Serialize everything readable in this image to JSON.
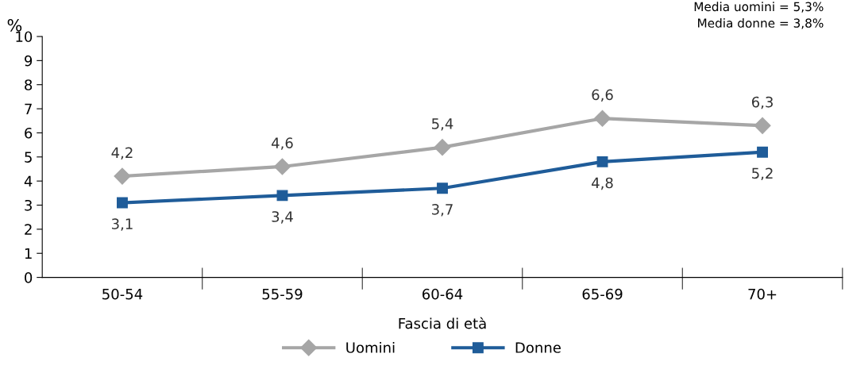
{
  "chart_data": {
    "type": "line",
    "xlabel": "Fascia di età",
    "ylabel": "%",
    "categories": [
      "50-54",
      "55-59",
      "60-64",
      "65-69",
      "70+"
    ],
    "series": [
      {
        "name": "Uomini",
        "color": "#a6a6a6",
        "marker": "diamond",
        "values": [
          4.2,
          4.6,
          5.4,
          6.6,
          6.3
        ],
        "value_labels": [
          "4,2",
          "4,6",
          "5,4",
          "6,6",
          "6,3"
        ]
      },
      {
        "name": "Donne",
        "color": "#1f5c99",
        "marker": "square",
        "values": [
          3.1,
          3.4,
          3.7,
          4.8,
          5.2
        ],
        "value_labels": [
          "3,1",
          "3,4",
          "3,7",
          "4,8",
          "5,2"
        ]
      }
    ],
    "ylim": [
      0,
      10
    ],
    "yticks": [
      0,
      1,
      2,
      3,
      4,
      5,
      6,
      7,
      8,
      9,
      10
    ],
    "grid": false,
    "legend": "bottom",
    "line_style": "solid",
    "annotations": [
      "Media uomini = 5,3%",
      "Media donne = 3,8%"
    ]
  }
}
